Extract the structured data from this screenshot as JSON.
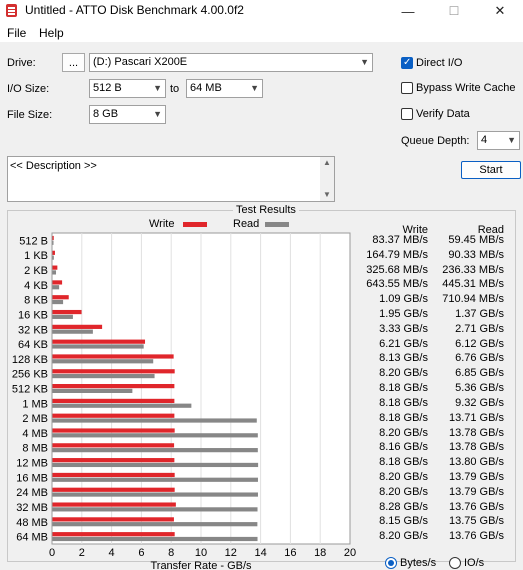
{
  "window": {
    "title": "Untitled - ATTO Disk Benchmark 4.00.0f2",
    "minimize": "—",
    "maximize": "☐",
    "close": "✕"
  },
  "menu": {
    "file": "File",
    "help": "Help"
  },
  "settings": {
    "drive_label": "Drive:",
    "browse_label": "...",
    "drive_value": "(D:) Pascari X200E",
    "io_size_label": "I/O Size:",
    "io_from": "512 B",
    "to_label": "to",
    "io_to": "64 MB",
    "file_size_label": "File Size:",
    "file_size": "8 GB",
    "direct_io": {
      "label": "Direct I/O",
      "checked": true
    },
    "bypass_write_cache": {
      "label": "Bypass Write Cache",
      "checked": false
    },
    "verify_data": {
      "label": "Verify Data",
      "checked": false
    },
    "queue_depth_label": "Queue Depth:",
    "queue_depth": "4",
    "start_label": "Start",
    "description": "<< Description >>"
  },
  "results": {
    "title": "Test Results",
    "legend_write": "Write",
    "legend_read": "Read",
    "col_write": "Write",
    "col_read": "Read",
    "units_bytes": "Bytes/s",
    "units_io": "IO/s",
    "units_selected": "Bytes/s",
    "rows": [
      {
        "size": "512 B",
        "write": "83.37 MB/s",
        "read": "59.45 MB/s"
      },
      {
        "size": "1 KB",
        "write": "164.79 MB/s",
        "read": "90.33 MB/s"
      },
      {
        "size": "2 KB",
        "write": "325.68 MB/s",
        "read": "236.33 MB/s"
      },
      {
        "size": "4 KB",
        "write": "643.55 MB/s",
        "read": "445.31 MB/s"
      },
      {
        "size": "8 KB",
        "write": "1.09 GB/s",
        "read": "710.94 MB/s"
      },
      {
        "size": "16 KB",
        "write": "1.95 GB/s",
        "read": "1.37 GB/s"
      },
      {
        "size": "32 KB",
        "write": "3.33 GB/s",
        "read": "2.71 GB/s"
      },
      {
        "size": "64 KB",
        "write": "6.21 GB/s",
        "read": "6.12 GB/s"
      },
      {
        "size": "128 KB",
        "write": "8.13 GB/s",
        "read": "6.76 GB/s"
      },
      {
        "size": "256 KB",
        "write": "8.20 GB/s",
        "read": "6.85 GB/s"
      },
      {
        "size": "512 KB",
        "write": "8.18 GB/s",
        "read": "5.36 GB/s"
      },
      {
        "size": "1 MB",
        "write": "8.18 GB/s",
        "read": "9.32 GB/s"
      },
      {
        "size": "2 MB",
        "write": "8.18 GB/s",
        "read": "13.71 GB/s"
      },
      {
        "size": "4 MB",
        "write": "8.20 GB/s",
        "read": "13.78 GB/s"
      },
      {
        "size": "8 MB",
        "write": "8.16 GB/s",
        "read": "13.78 GB/s"
      },
      {
        "size": "12 MB",
        "write": "8.18 GB/s",
        "read": "13.80 GB/s"
      },
      {
        "size": "16 MB",
        "write": "8.20 GB/s",
        "read": "13.79 GB/s"
      },
      {
        "size": "24 MB",
        "write": "8.20 GB/s",
        "read": "13.79 GB/s"
      },
      {
        "size": "32 MB",
        "write": "8.28 GB/s",
        "read": "13.76 GB/s"
      },
      {
        "size": "48 MB",
        "write": "8.15 GB/s",
        "read": "13.75 GB/s"
      },
      {
        "size": "64 MB",
        "write": "8.20 GB/s",
        "read": "13.76 GB/s"
      }
    ]
  },
  "chart_data": {
    "type": "bar",
    "orientation": "horizontal",
    "title": "Test Results",
    "xlabel": "Transfer Rate - GB/s",
    "ylabel": "",
    "xlim": [
      0,
      20
    ],
    "xticks": [
      "0",
      "2",
      "4",
      "6",
      "8",
      "10",
      "12",
      "14",
      "16",
      "18",
      "20"
    ],
    "grid": true,
    "legend": "top",
    "categories": [
      "512 B",
      "1 KB",
      "2 KB",
      "4 KB",
      "8 KB",
      "16 KB",
      "32 KB",
      "64 KB",
      "128 KB",
      "256 KB",
      "512 KB",
      "1 MB",
      "2 MB",
      "4 MB",
      "8 MB",
      "12 MB",
      "16 MB",
      "24 MB",
      "32 MB",
      "48 MB",
      "64 MB"
    ],
    "series": [
      {
        "name": "Write",
        "color": "#e0262b",
        "values": [
          0.083,
          0.165,
          0.326,
          0.644,
          1.09,
          1.95,
          3.33,
          6.21,
          8.13,
          8.2,
          8.18,
          8.18,
          8.18,
          8.2,
          8.16,
          8.18,
          8.2,
          8.2,
          8.28,
          8.15,
          8.2
        ]
      },
      {
        "name": "Read",
        "color": "#878787",
        "values": [
          0.059,
          0.09,
          0.236,
          0.445,
          0.711,
          1.37,
          2.71,
          6.12,
          6.76,
          6.85,
          5.36,
          9.32,
          13.71,
          13.78,
          13.78,
          13.8,
          13.79,
          13.79,
          13.76,
          13.75,
          13.76
        ]
      }
    ]
  }
}
